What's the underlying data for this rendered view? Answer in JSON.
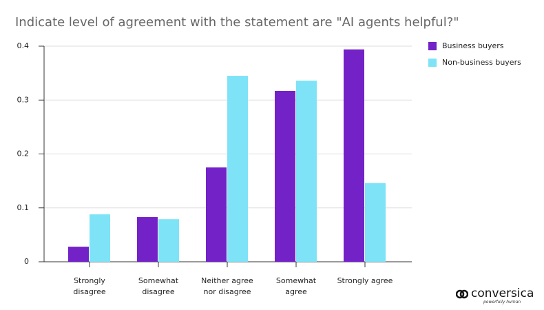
{
  "chart_data": {
    "type": "bar",
    "title": "Indicate level of agreement with the statement are \"AI agents helpful?\"",
    "categories": [
      "Strongly\ndisagree",
      "Somewhat\ndisagree",
      "Neither agree\nnor disagree",
      "Somewhat\nagree",
      "Strongly agree"
    ],
    "series": [
      {
        "name": "Business buyers",
        "color": "#7322c8",
        "values": [
          0.028,
          0.083,
          0.175,
          0.317,
          0.394
        ]
      },
      {
        "name": "Non-business buyers",
        "color": "#7ee3f7",
        "values": [
          0.088,
          0.079,
          0.345,
          0.336,
          0.146
        ]
      }
    ],
    "ylim": [
      0,
      0.4
    ],
    "yticks": [
      0,
      0.1,
      0.2,
      0.3,
      0.4
    ],
    "grid": true,
    "legend": "right"
  },
  "logo": {
    "name": "conversica",
    "tagline": "powerfully human"
  }
}
